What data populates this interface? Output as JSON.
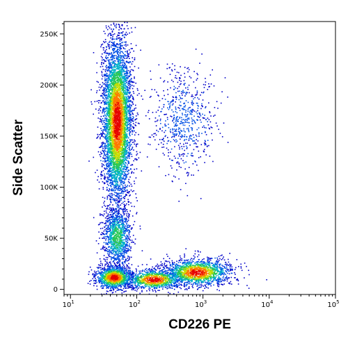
{
  "chart_data": {
    "type": "scatter",
    "style": "pseudocolor density dot plot (flow cytometry)",
    "title": "",
    "xlabel": "CD226 PE",
    "ylabel": "Side Scatter",
    "x_scale": "log",
    "xlim": [
      8,
      100000
    ],
    "ylim": [
      -5000,
      262144
    ],
    "x_ticks": [
      {
        "value": 10,
        "base": "10",
        "exp": "1"
      },
      {
        "value": 100,
        "base": "10",
        "exp": "2"
      },
      {
        "value": 1000,
        "base": "10",
        "exp": "3"
      },
      {
        "value": 10000,
        "base": "10",
        "exp": "4"
      },
      {
        "value": 100000,
        "base": "10",
        "exp": "5"
      }
    ],
    "y_ticks": [
      {
        "value": 0,
        "label": "0"
      },
      {
        "value": 50000,
        "label": "50K"
      },
      {
        "value": 100000,
        "label": "100K"
      },
      {
        "value": 150000,
        "label": "150K"
      },
      {
        "value": 200000,
        "label": "200K"
      },
      {
        "value": 250000,
        "label": "250K"
      }
    ],
    "density_colors": [
      "#0000c8",
      "#0050e6",
      "#00b4c8",
      "#28c850",
      "#c8dc00",
      "#ff7800",
      "#e60000"
    ],
    "populations": [
      {
        "x_center": 50,
        "y_center": 165000,
        "x_spread_decades": 0.11,
        "y_spread": 40000,
        "count": 5200,
        "peak_color": "red"
      },
      {
        "x_center": 50,
        "y_center": 52000,
        "x_spread_decades": 0.11,
        "y_spread": 15000,
        "count": 1100,
        "peak_color": "green"
      },
      {
        "x_center": 45,
        "y_center": 12000,
        "x_spread_decades": 0.14,
        "y_spread": 5500,
        "count": 1300,
        "peak_color": "red"
      },
      {
        "x_center": 180,
        "y_center": 10000,
        "x_spread_decades": 0.22,
        "y_spread": 5000,
        "count": 1000,
        "peak_color": "red"
      },
      {
        "x_center": 800,
        "y_center": 17000,
        "x_spread_decades": 0.25,
        "y_spread": 6500,
        "count": 1600,
        "peak_color": "red"
      },
      {
        "x_center": 500,
        "y_center": 165000,
        "x_spread_decades": 0.25,
        "y_spread": 25000,
        "count": 650,
        "peak_color": "blue"
      }
    ]
  }
}
